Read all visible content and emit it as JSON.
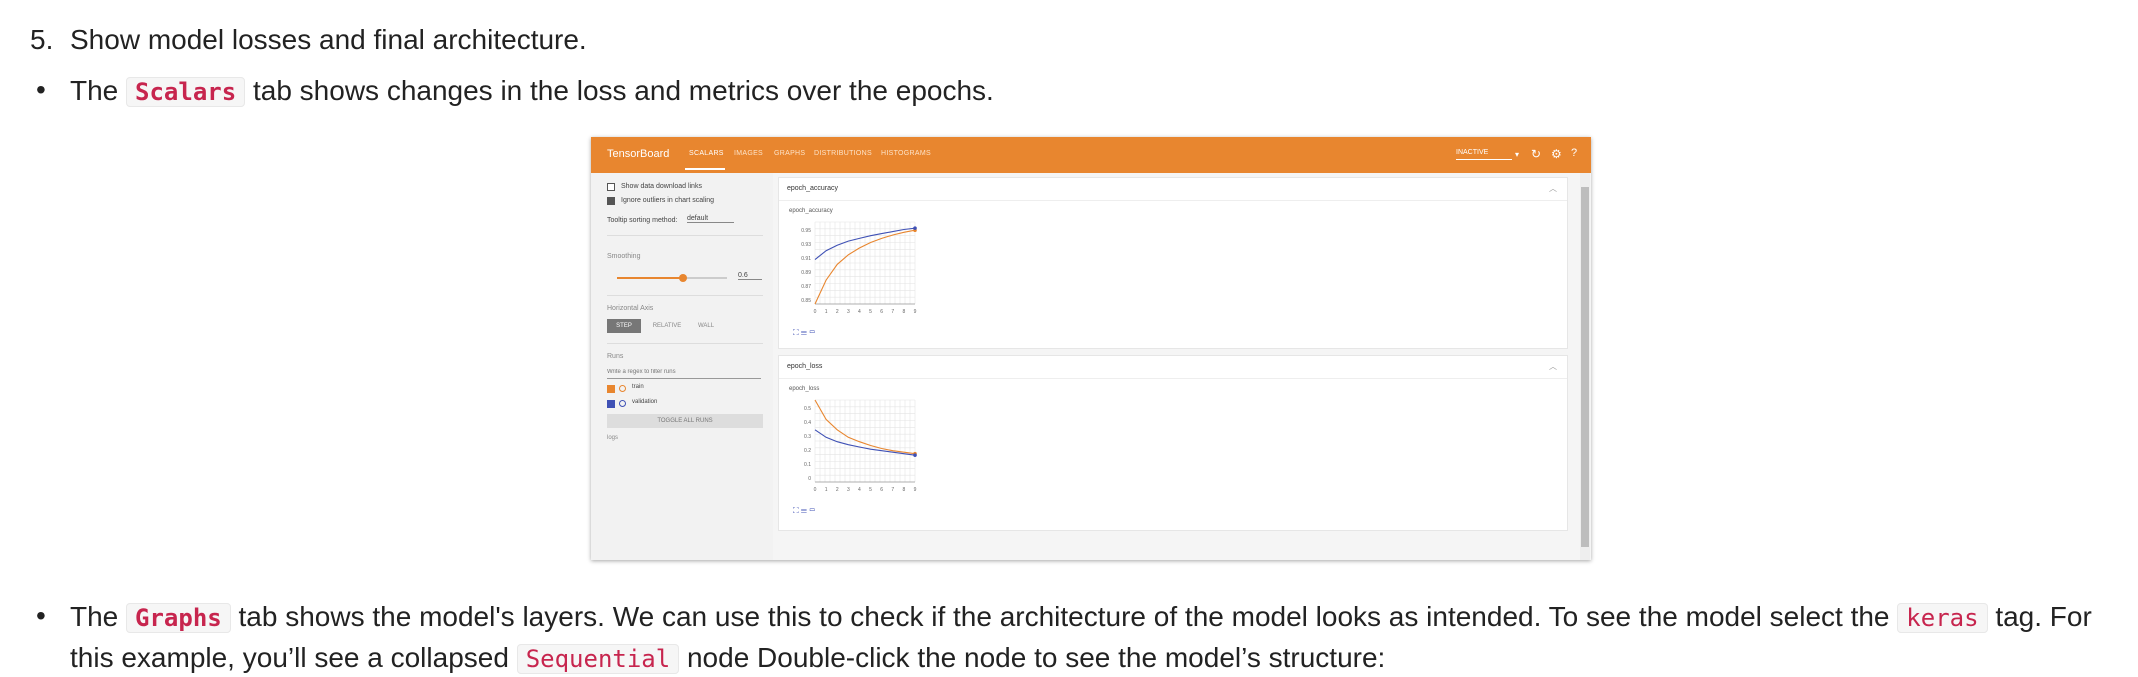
{
  "step": {
    "number": "5.",
    "text": "Show model losses and final architecture."
  },
  "bullet1": {
    "pre": "The",
    "code": "Scalars",
    "post": "tab shows changes in the loss and metrics over the epochs."
  },
  "bullet2": {
    "pre": "The",
    "code1": "Graphs",
    "mid": "tab shows the model's layers. We can use this to check if the architecture of the model looks as intended. To see the model select the",
    "code2": "keras",
    "post": "tag. For",
    "line2_pre": "this example, you’ll see a collapsed",
    "code3": "Sequential",
    "line2_post": "node Double-click the node to see the model’s structure:"
  },
  "tensorboard": {
    "brand": "TensorBoard",
    "tabs": [
      "SCALARS",
      "IMAGES",
      "GRAPHS",
      "DISTRIBUTIONS",
      "HISTOGRAMS"
    ],
    "status": "INACTIVE",
    "accent": "#e8862f",
    "sidebar": {
      "show_download": "Show data download links",
      "ignore_outliers": "Ignore outliers in chart scaling",
      "tooltip_label": "Tooltip sorting method:",
      "tooltip_value": "default",
      "smoothing_label": "Smoothing",
      "smoothing_value": "0.6",
      "haxis_label": "Horizontal Axis",
      "haxis_options": [
        "STEP",
        "RELATIVE",
        "WALL"
      ],
      "runs_label": "Runs",
      "runs_placeholder": "Write a regex to filter runs",
      "runs": [
        {
          "name": "train",
          "color": "#e8862f"
        },
        {
          "name": "validation",
          "color": "#3f51b5"
        }
      ],
      "toggle_all": "TOGGLE ALL RUNS",
      "logdir": "logs"
    }
  },
  "chart_data": [
    {
      "type": "line",
      "title": "epoch_accuracy",
      "x": [
        0,
        1,
        2,
        3,
        4,
        5,
        6,
        7,
        8,
        9
      ],
      "xticks": [
        "0",
        "1",
        "2",
        "3",
        "4",
        "5",
        "6",
        "7",
        "8",
        "9"
      ],
      "yticks": [
        "0.95",
        "0.93",
        "0.91",
        "0.89",
        "0.87",
        "0.85"
      ],
      "ylim": [
        0.84,
        0.96
      ],
      "grid": true,
      "series": [
        {
          "name": "train",
          "color": "#e8862f",
          "values": [
            0.825,
            0.875,
            0.898,
            0.912,
            0.922,
            0.93,
            0.936,
            0.941,
            0.945,
            0.948
          ]
        },
        {
          "name": "validation",
          "color": "#3f51b5",
          "values": [
            0.905,
            0.918,
            0.926,
            0.932,
            0.936,
            0.94,
            0.943,
            0.946,
            0.949,
            0.951
          ]
        }
      ]
    },
    {
      "type": "line",
      "title": "epoch_loss",
      "x": [
        0,
        1,
        2,
        3,
        4,
        5,
        6,
        7,
        8,
        9
      ],
      "xticks": [
        "0",
        "1",
        "2",
        "3",
        "4",
        "5",
        "6",
        "7",
        "8",
        "9"
      ],
      "yticks": [
        "0.5",
        "0.4",
        "0.3",
        "0.2",
        "0.1",
        "0"
      ],
      "ylim": [
        0,
        0.55
      ],
      "grid": true,
      "series": [
        {
          "name": "train",
          "color": "#e8862f",
          "values": [
            0.58,
            0.42,
            0.35,
            0.3,
            0.27,
            0.245,
            0.225,
            0.21,
            0.2,
            0.19
          ]
        },
        {
          "name": "validation",
          "color": "#3f51b5",
          "values": [
            0.35,
            0.3,
            0.27,
            0.25,
            0.235,
            0.22,
            0.21,
            0.2,
            0.19,
            0.18
          ]
        }
      ]
    }
  ]
}
